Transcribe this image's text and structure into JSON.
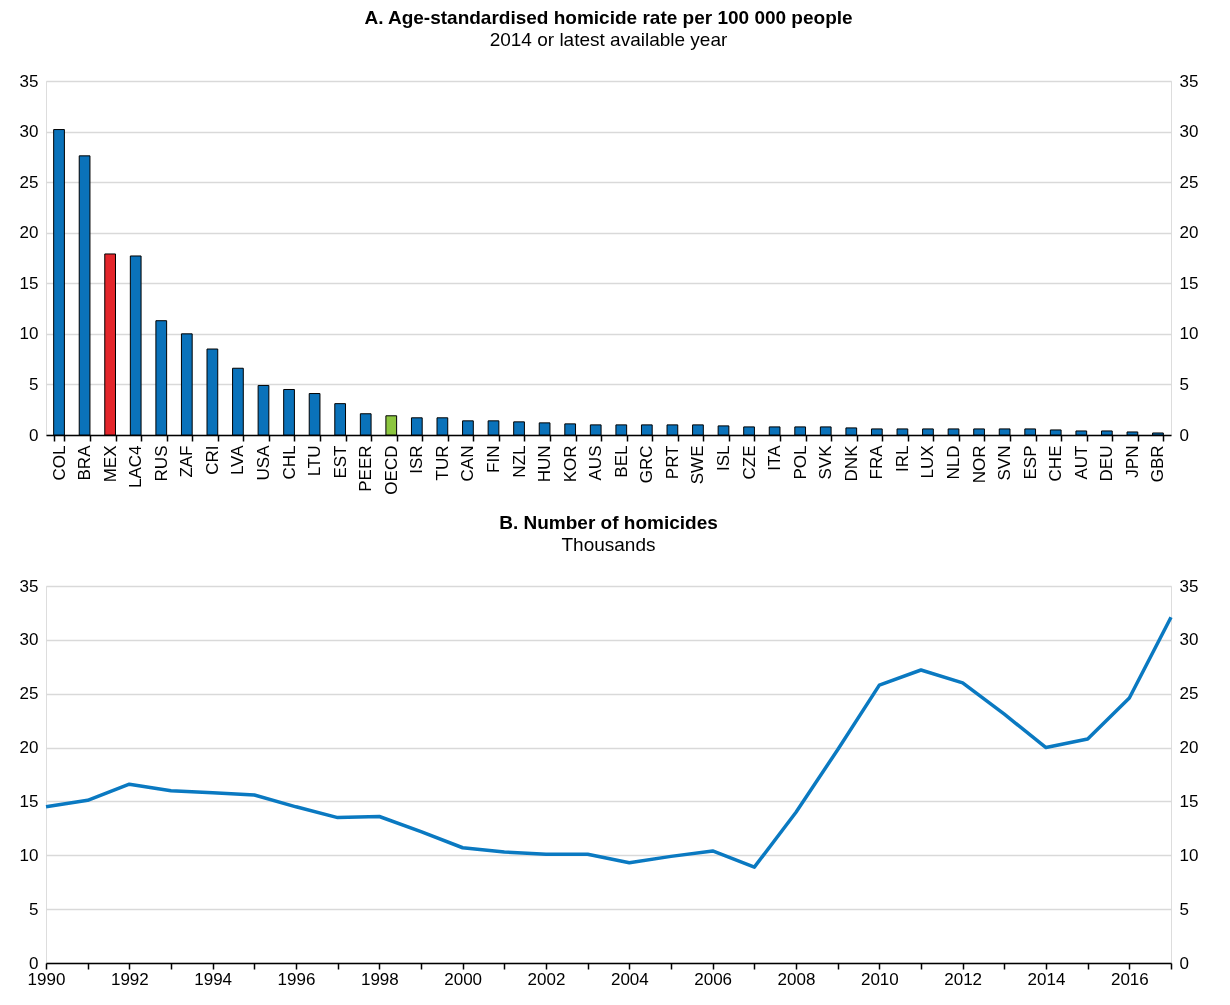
{
  "chart_data": [
    {
      "type": "bar",
      "title": "A. Age-standardised homicide rate per 100 000 people",
      "subtitle": "2014 or latest available year",
      "categories": [
        "COL",
        "BRA",
        "MEX",
        "LAC4",
        "RUS",
        "ZAF",
        "CRI",
        "LVA",
        "USA",
        "CHL",
        "LTU",
        "EST",
        "PEER",
        "OECD",
        "ISR",
        "TUR",
        "CAN",
        "FIN",
        "NZL",
        "HUN",
        "KOR",
        "AUS",
        "BEL",
        "GRC",
        "PRT",
        "SWE",
        "ISL",
        "CZE",
        "ITA",
        "POL",
        "SVK",
        "DNK",
        "FRA",
        "IRL",
        "LUX",
        "NLD",
        "NOR",
        "SVN",
        "ESP",
        "CHE",
        "AUT",
        "DEU",
        "JPN",
        "GBR"
      ],
      "values": [
        30.2,
        27.6,
        17.9,
        17.7,
        11.3,
        10.0,
        8.5,
        6.6,
        4.9,
        4.5,
        4.1,
        3.1,
        2.1,
        1.9,
        1.7,
        1.7,
        1.4,
        1.4,
        1.3,
        1.2,
        1.1,
        1.0,
        1.0,
        1.0,
        1.0,
        1.0,
        0.9,
        0.8,
        0.8,
        0.8,
        0.8,
        0.7,
        0.6,
        0.6,
        0.6,
        0.6,
        0.6,
        0.6,
        0.6,
        0.5,
        0.4,
        0.4,
        0.3,
        0.2
      ],
      "colors": [
        "#0a72ba",
        "#0a72ba",
        "#e3262b",
        "#0a72ba",
        "#0a72ba",
        "#0a72ba",
        "#0a72ba",
        "#0a72ba",
        "#0a72ba",
        "#0a72ba",
        "#0a72ba",
        "#0a72ba",
        "#0a72ba",
        "#8cc63f",
        "#0a72ba",
        "#0a72ba",
        "#0a72ba",
        "#0a72ba",
        "#0a72ba",
        "#0a72ba",
        "#0a72ba",
        "#0a72ba",
        "#0a72ba",
        "#0a72ba",
        "#0a72ba",
        "#0a72ba",
        "#0a72ba",
        "#0a72ba",
        "#0a72ba",
        "#0a72ba",
        "#0a72ba",
        "#0a72ba",
        "#0a72ba",
        "#0a72ba",
        "#0a72ba",
        "#0a72ba",
        "#0a72ba",
        "#0a72ba",
        "#0a72ba",
        "#0a72ba",
        "#0a72ba",
        "#0a72ba",
        "#0a72ba",
        "#0a72ba"
      ],
      "ylim": [
        0,
        35
      ],
      "yticks": [
        0,
        5,
        10,
        15,
        20,
        25,
        30,
        35
      ],
      "y2lim": [
        0,
        35
      ],
      "y2ticks": [
        0,
        5,
        10,
        15,
        20,
        25,
        30,
        35
      ],
      "grid": "y"
    },
    {
      "type": "line",
      "title": "B. Number of homicides",
      "subtitle": "Thousands",
      "x": [
        1990,
        1991,
        1992,
        1993,
        1994,
        1995,
        1996,
        1997,
        1998,
        1999,
        2000,
        2001,
        2002,
        2003,
        2004,
        2005,
        2006,
        2007,
        2008,
        2009,
        2010,
        2011,
        2012,
        2013,
        2014,
        2015,
        2016,
        2017
      ],
      "series": [
        {
          "color": "#0a79c1",
          "values": [
            14.5,
            15.1,
            16.6,
            16.0,
            15.8,
            15.6,
            14.5,
            13.5,
            13.6,
            12.2,
            10.7,
            10.3,
            10.1,
            10.1,
            9.3,
            9.9,
            10.4,
            8.9,
            14.0,
            19.8,
            25.8,
            27.2,
            26.0,
            23.1,
            20.0,
            20.8,
            24.6,
            32.1
          ]
        }
      ],
      "xlim": [
        1990,
        2017
      ],
      "xticks": [
        1990,
        {
          "value": 1991,
          "label": null
        },
        1992,
        {
          "value": 1993,
          "label": null
        },
        1994,
        {
          "value": 1995,
          "label": null
        },
        1996,
        {
          "value": 1997,
          "label": null
        },
        1998,
        {
          "value": 1999,
          "label": null
        },
        2000,
        {
          "value": 2001,
          "label": null
        },
        2002,
        {
          "value": 2003,
          "label": null
        },
        2004,
        {
          "value": 2005,
          "label": null
        },
        2006,
        {
          "value": 2007,
          "label": null
        },
        2008,
        {
          "value": 2009,
          "label": null
        },
        2010,
        {
          "value": 2011,
          "label": null
        },
        2012,
        {
          "value": 2013,
          "label": null
        },
        2014,
        {
          "value": 2015,
          "label": null
        },
        2016,
        {
          "value": 2017,
          "label": null
        }
      ],
      "ylim": [
        0,
        35
      ],
      "yticks": [
        0,
        5,
        10,
        15,
        20,
        25,
        30,
        35
      ],
      "y2lim": [
        0,
        35
      ],
      "y2ticks": [
        0,
        5,
        10,
        15,
        20,
        25,
        30,
        35
      ],
      "grid": "y",
      "marker": "none",
      "line_style": "solid"
    }
  ]
}
